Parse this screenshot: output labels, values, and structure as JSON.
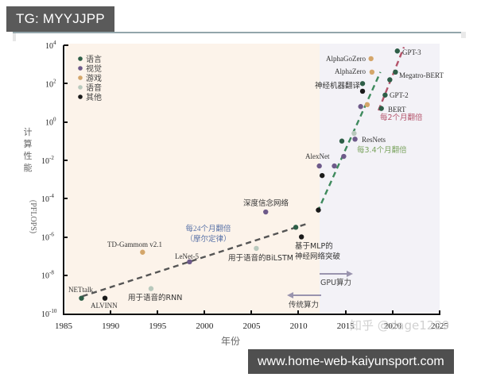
{
  "badges": {
    "top_left": "TG: MYYJJPP",
    "bottom_right": "www.home-web-kaiyunsport.com"
  },
  "watermark": "知乎 @dage1229",
  "chart_data": {
    "type": "scatter",
    "title": "",
    "xlabel": "年份",
    "ylabel": "计算性能（PFLOPS）",
    "xlim": [
      1985,
      2025
    ],
    "ylim_log10": [
      -10,
      4
    ],
    "y_scale": "log",
    "x_ticks": [
      "1985",
      "1990",
      "1995",
      "2000",
      "2005",
      "2010",
      "2015",
      "2020",
      "2025"
    ],
    "y_ticks": [
      "10^4",
      "10^2",
      "10^0",
      "10^-2",
      "10^-4",
      "10^-6",
      "10^-8",
      "10^-10"
    ],
    "grid": false,
    "legend_position": "upper-left",
    "legend": [
      {
        "label": "语言",
        "color": "#2e5e47"
      },
      {
        "label": "视觉",
        "color": "#6e5a8a"
      },
      {
        "label": "游戏",
        "color": "#d4a66a"
      },
      {
        "label": "语音",
        "color": "#b9c9bd"
      },
      {
        "label": "其他",
        "color": "#1a1a1a"
      }
    ],
    "regions": [
      {
        "label": "传统算力",
        "x_range": [
          1985,
          2012.2
        ],
        "color": "#fcf3ea"
      },
      {
        "label": "GPU算力",
        "x_range": [
          2012.2,
          2025
        ],
        "color": "#f3f2f7"
      }
    ],
    "trend_lines": [
      {
        "label": "每24个月翻倍（摩尔定律）",
        "color": "#555555",
        "from": [
          1987,
          -9.1
        ],
        "to": [
          2011,
          -5.3
        ]
      },
      {
        "label": "每3.4个月翻倍",
        "color": "#3e8a5d",
        "from": [
          2012,
          -4.7
        ],
        "to": [
          2018.7,
          2.6
        ]
      },
      {
        "label": "每2个月翻倍",
        "color": "#b4536a",
        "from": [
          2018.5,
          0.6
        ],
        "to": [
          2021.2,
          3.9
        ]
      }
    ],
    "points": [
      {
        "label": "NETtalk",
        "category": "语言",
        "x": 1986.9,
        "log10_y": -9.2
      },
      {
        "label": "ALVINN",
        "category": "其他",
        "x": 1989.4,
        "log10_y": -9.2
      },
      {
        "label": "用于语音的RNN",
        "category": "语音",
        "x": 1994.3,
        "log10_y": -8.7
      },
      {
        "label": "TD-Gammom v2.1",
        "category": "游戏",
        "x": 1993.4,
        "log10_y": -6.8
      },
      {
        "label": "LeNet-5",
        "category": "视觉",
        "x": 1998.4,
        "log10_y": -7.3
      },
      {
        "label": "用于语音的BiLSTM",
        "category": "语音",
        "x": 2005.5,
        "log10_y": -6.6
      },
      {
        "label": "深度信念网络",
        "category": "视觉",
        "x": 2006.5,
        "log10_y": -4.7
      },
      {
        "label": "",
        "category": "语言",
        "x": 2009.7,
        "log10_y": -5.5
      },
      {
        "label": "基于MLP的神经网络突破",
        "category": "其他",
        "x": 2010.3,
        "log10_y": -6.0
      },
      {
        "label": "",
        "category": "其他",
        "x": 2012.1,
        "log10_y": -4.6
      },
      {
        "label": "AlexNet",
        "category": "视觉",
        "x": 2012.2,
        "log10_y": -2.3
      },
      {
        "label": "",
        "category": "其他",
        "x": 2012.5,
        "log10_y": -2.8
      },
      {
        "label": "",
        "category": "视觉",
        "x": 2013.8,
        "log10_y": -2.3
      },
      {
        "label": "",
        "category": "语言",
        "x": 2014.6,
        "log10_y": -1.0
      },
      {
        "label": "",
        "category": "视觉",
        "x": 2014.8,
        "log10_y": -1.8
      },
      {
        "label": "",
        "category": "语音",
        "x": 2015.9,
        "log10_y": -0.6
      },
      {
        "label": "ResNets",
        "category": "视觉",
        "x": 2016.0,
        "log10_y": -0.9
      },
      {
        "label": "",
        "category": "视觉",
        "x": 2016.6,
        "log10_y": 0.8
      },
      {
        "label": "",
        "category": "游戏",
        "x": 2017.3,
        "log10_y": 0.9
      },
      {
        "label": "",
        "category": "其他",
        "x": 2016.8,
        "log10_y": 1.6
      },
      {
        "label": "神经机器翻译",
        "category": "语言",
        "x": 2016.8,
        "log10_y": 2.0
      },
      {
        "label": "AlphaZero",
        "category": "游戏",
        "x": 2017.8,
        "log10_y": 2.6
      },
      {
        "label": "AlphaGoZero",
        "category": "游戏",
        "x": 2017.7,
        "log10_y": 3.3
      },
      {
        "label": "BERT",
        "category": "语言",
        "x": 2018.8,
        "log10_y": 0.7
      },
      {
        "label": "GPT-2",
        "category": "语言",
        "x": 2019.2,
        "log10_y": 1.4
      },
      {
        "label": "",
        "category": "语言",
        "x": 2019.7,
        "log10_y": 2.2
      },
      {
        "label": "Megatro-BERT",
        "category": "语言",
        "x": 2020.3,
        "log10_y": 2.6
      },
      {
        "label": "GPT-3",
        "category": "语言",
        "x": 2020.5,
        "log10_y": 3.7
      }
    ],
    "annotations": [
      "GPU算力 →",
      "← 传统算力",
      "每24个月翻倍",
      "（摩尔定律）",
      "每3.4个月翻倍",
      "每2个月翻倍"
    ]
  }
}
